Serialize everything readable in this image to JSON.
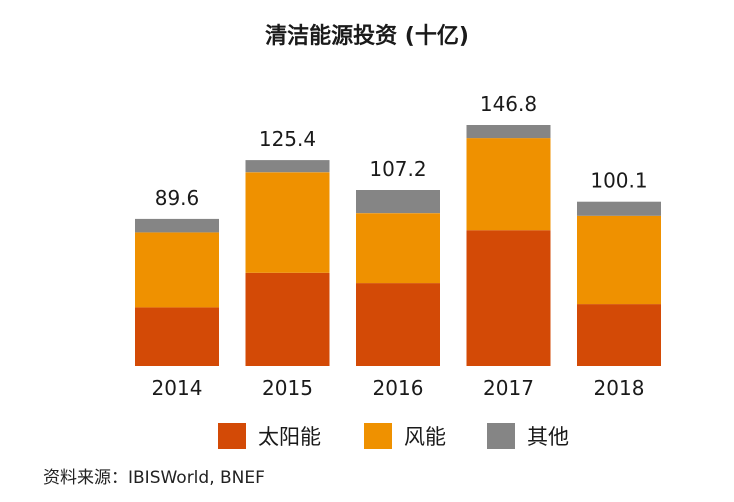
{
  "chart_data": {
    "type": "bar",
    "stacked": true,
    "title": "清洁能源投资 (十亿)",
    "categories": [
      "2014",
      "2015",
      "2016",
      "2017",
      "2018"
    ],
    "totals": [
      "89.6",
      "125.4",
      "107.2",
      "146.8",
      "100.1"
    ],
    "series": [
      {
        "name": "太阳能",
        "color": "#d34a06",
        "values": [
          35.7,
          56.8,
          50.5,
          82.7,
          37.7
        ]
      },
      {
        "name": "风能",
        "color": "#ef9100",
        "values": [
          45.7,
          61.2,
          42.6,
          56.1,
          53.8
        ]
      },
      {
        "name": "其他",
        "color": "#858585",
        "values": [
          8.2,
          7.4,
          14.1,
          8.0,
          8.6
        ]
      }
    ],
    "ylim": [
      0,
      150
    ]
  },
  "source": "资料来源：IBISWorld, BNEF"
}
